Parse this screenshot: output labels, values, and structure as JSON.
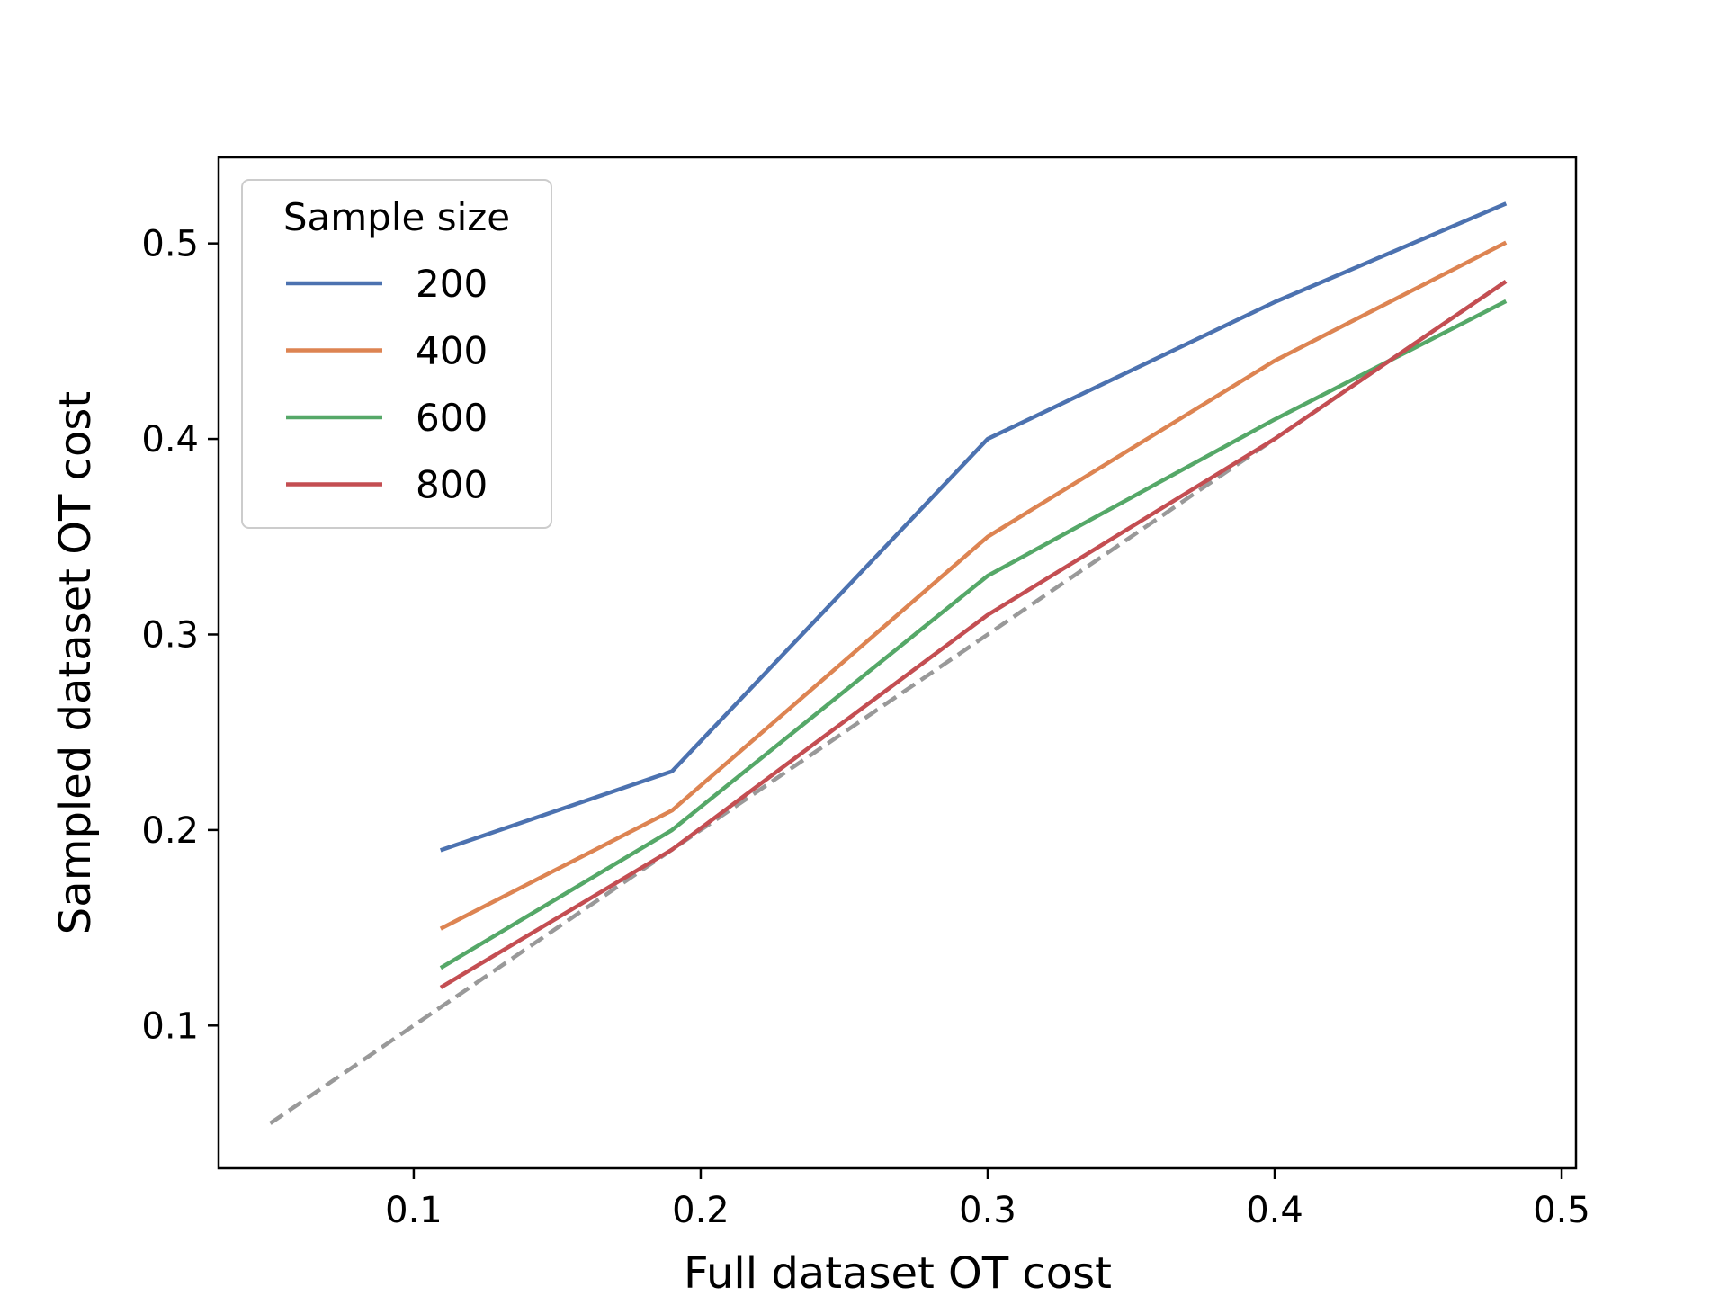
{
  "chart_data": {
    "type": "line",
    "title": "",
    "xlabel": "Full dataset OT cost",
    "ylabel": "Sampled dataset OT cost",
    "xlim": [
      0.032,
      0.505
    ],
    "ylim": [
      0.027,
      0.544
    ],
    "xticks": [
      0.1,
      0.2,
      0.3,
      0.4,
      0.5
    ],
    "xtick_labels": [
      "0.1",
      "0.2",
      "0.3",
      "0.4",
      "0.5"
    ],
    "yticks": [
      0.1,
      0.2,
      0.3,
      0.4,
      0.5
    ],
    "ytick_labels": [
      "0.1",
      "0.2",
      "0.3",
      "0.4",
      "0.5"
    ],
    "grid": false,
    "legend": {
      "title": "Sample size",
      "placement": "top-left"
    },
    "x": [
      0.11,
      0.19,
      0.3,
      0.4,
      0.48
    ],
    "series": [
      {
        "name": "200",
        "color": "#4c72b0",
        "values": [
          0.19,
          0.23,
          0.4,
          0.47,
          0.52
        ]
      },
      {
        "name": "400",
        "color": "#dd8452",
        "values": [
          0.15,
          0.21,
          0.35,
          0.44,
          0.5
        ]
      },
      {
        "name": "600",
        "color": "#55a868",
        "values": [
          0.13,
          0.2,
          0.33,
          0.41,
          0.47
        ]
      },
      {
        "name": "800",
        "color": "#c44e52",
        "values": [
          0.12,
          0.19,
          0.31,
          0.4,
          0.48
        ]
      }
    ],
    "reference_line": {
      "style": "dashed",
      "color": "#999999",
      "x": [
        0.05,
        0.48
      ],
      "y": [
        0.05,
        0.48
      ]
    }
  }
}
